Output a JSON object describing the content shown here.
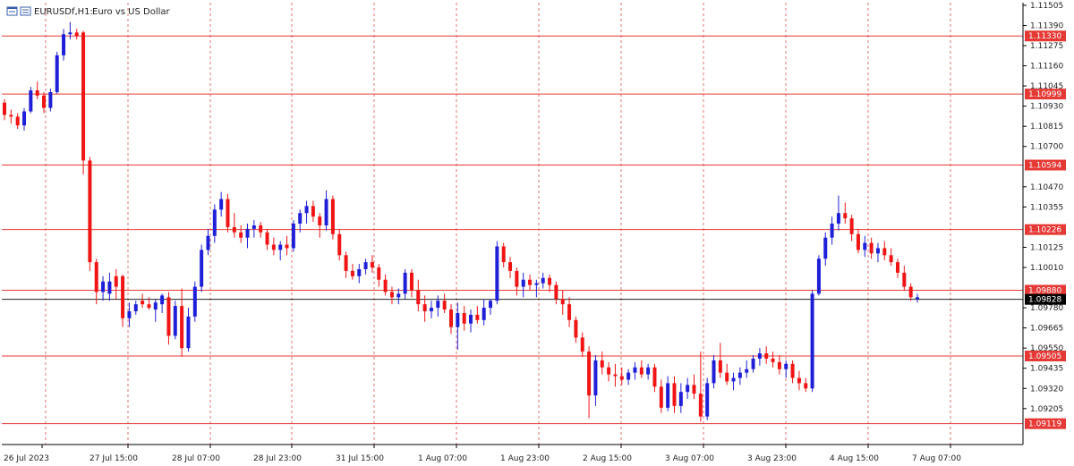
{
  "header": {
    "symbol_label": "EURUSDf,H1:",
    "description": "Euro vs US Dollar"
  },
  "colors": {
    "bull": "#1f1fd8",
    "bear": "#f01414",
    "grid": "#e05050",
    "hline": "#e53935",
    "price_line": "#000000",
    "axis": "#000000"
  },
  "icons": [
    "chart-window-icon",
    "properties-icon"
  ],
  "chart_data": {
    "type": "candlestick",
    "symbol": "EURUSDf",
    "timeframe": "H1",
    "ylim": [
      1.09,
      1.1152
    ],
    "yticks": [
      "1.11505",
      "1.11390",
      "1.11275",
      "1.11160",
      "1.11045",
      "1.10930",
      "1.10815",
      "1.10700",
      "1.10470",
      "1.10355",
      "1.10125",
      "1.10010",
      "1.09780",
      "1.09665",
      "1.09550",
      "1.09435",
      "1.09320",
      "1.09205"
    ],
    "xticks": [
      "26 Jul 2023",
      "27 Jul 15:00",
      "28 Jul 07:00",
      "28 Jul 23:00",
      "31 Jul 15:00",
      "1 Aug 07:00",
      "1 Aug 23:00",
      "2 Aug 15:00",
      "3 Aug 07:00",
      "3 Aug 23:00",
      "4 Aug 15:00",
      "7 Aug 07:00"
    ],
    "horizontal_lines": [
      {
        "label": "1.11330",
        "value": 1.1133
      },
      {
        "label": "1.10999",
        "value": 1.10999
      },
      {
        "label": "1.10594",
        "value": 1.10594
      },
      {
        "label": "1.10226",
        "value": 1.10226
      },
      {
        "label": "1.09880",
        "value": 1.0988
      },
      {
        "label": "1.09505",
        "value": 1.09505
      },
      {
        "label": "1.09119",
        "value": 1.09119
      }
    ],
    "current_price": {
      "label": "1.09828",
      "value": 1.09828
    },
    "candles_ohlc": [
      [
        1.1095,
        1.1097,
        1.1085,
        1.1088
      ],
      [
        1.1088,
        1.1091,
        1.1083,
        1.1087
      ],
      [
        1.1087,
        1.1089,
        1.108,
        1.1082
      ],
      [
        1.1082,
        1.1092,
        1.1079,
        1.109
      ],
      [
        1.109,
        1.1104,
        1.1089,
        1.1102
      ],
      [
        1.1102,
        1.1107,
        1.1097,
        1.1099
      ],
      [
        1.1099,
        1.1101,
        1.1089,
        1.1092
      ],
      [
        1.1092,
        1.1103,
        1.109,
        1.1101
      ],
      [
        1.1101,
        1.1124,
        1.11,
        1.1122
      ],
      [
        1.1122,
        1.1137,
        1.1119,
        1.1134
      ],
      [
        1.1134,
        1.1141,
        1.1131,
        1.1135
      ],
      [
        1.1135,
        1.1137,
        1.1131,
        1.1133
      ],
      [
        1.1135,
        1.1136,
        1.1054,
        1.1062
      ],
      [
        1.1062,
        1.1064,
        1.0999,
        1.1004
      ],
      [
        1.1004,
        1.1006,
        1.098,
        1.0987
      ],
      [
        1.0987,
        1.0996,
        1.0982,
        1.0993
      ],
      [
        1.0986,
        1.0998,
        1.0982,
        1.0993
      ],
      [
        1.0996,
        1.1,
        1.0983,
        1.099
      ],
      [
        1.0996,
        1.0997,
        1.0967,
        1.0972
      ],
      [
        1.0972,
        1.0981,
        1.0967,
        1.0976
      ],
      [
        1.0976,
        1.0982,
        1.0974,
        1.098
      ],
      [
        1.0982,
        1.0986,
        1.0978,
        1.098
      ],
      [
        1.098,
        1.0984,
        1.0977,
        1.0978
      ],
      [
        1.0977,
        1.0983,
        1.097,
        1.0981
      ],
      [
        1.098,
        1.0986,
        1.0975,
        1.0985
      ],
      [
        1.0984,
        1.0987,
        1.0957,
        1.0962
      ],
      [
        1.0962,
        1.0982,
        1.096,
        1.0979
      ],
      [
        1.0979,
        1.0989,
        1.095,
        1.0955
      ],
      [
        1.0955,
        1.0978,
        1.0953,
        1.0973
      ],
      [
        1.0973,
        1.0993,
        1.097,
        1.099
      ],
      [
        1.099,
        1.1014,
        1.0987,
        1.1011
      ],
      [
        1.1011,
        1.1023,
        1.1008,
        1.1019
      ],
      [
        1.1019,
        1.1037,
        1.1015,
        1.1034
      ],
      [
        1.1034,
        1.1044,
        1.103,
        1.104
      ],
      [
        1.104,
        1.1043,
        1.1021,
        1.1024
      ],
      [
        1.1024,
        1.1032,
        1.1018,
        1.1021
      ],
      [
        1.1021,
        1.1025,
        1.1015,
        1.1018
      ],
      [
        1.1018,
        1.1026,
        1.1012,
        1.1023
      ],
      [
        1.1023,
        1.1028,
        1.1018,
        1.1025
      ],
      [
        1.1025,
        1.1027,
        1.1018,
        1.1021
      ],
      [
        1.1021,
        1.1023,
        1.1011,
        1.1014
      ],
      [
        1.1014,
        1.1018,
        1.1008,
        1.1011
      ],
      [
        1.1011,
        1.1016,
        1.1005,
        1.1014
      ],
      [
        1.1014,
        1.1019,
        1.1008,
        1.1012
      ],
      [
        1.1012,
        1.1028,
        1.101,
        1.1026
      ],
      [
        1.1026,
        1.1034,
        1.1021,
        1.1032
      ],
      [
        1.1032,
        1.1039,
        1.1026,
        1.1036
      ],
      [
        1.1036,
        1.1039,
        1.1027,
        1.103
      ],
      [
        1.103,
        1.1032,
        1.1018,
        1.1025
      ],
      [
        1.1025,
        1.1045,
        1.1022,
        1.104
      ],
      [
        1.104,
        1.1042,
        1.1017,
        1.102
      ],
      [
        1.102,
        1.1023,
        1.1005,
        1.1008
      ],
      [
        1.1008,
        1.101,
        1.0995,
        1.0999
      ],
      [
        1.0999,
        1.1003,
        1.0994,
        1.0996
      ],
      [
        1.0996,
        1.1003,
        1.0992,
        1.1
      ],
      [
        1.1,
        1.1006,
        1.0997,
        1.1004
      ],
      [
        1.1004,
        1.1008,
        1.0998,
        1.1001
      ],
      [
        1.1001,
        1.1003,
        1.099,
        1.0994
      ],
      [
        1.0994,
        1.0997,
        1.0985,
        1.0987
      ],
      [
        1.0987,
        1.099,
        1.098,
        1.0984
      ],
      [
        1.0984,
        1.0989,
        1.098,
        1.0986
      ],
      [
        1.0986,
        1.1,
        1.0983,
        1.0998
      ],
      [
        1.0998,
        1.1,
        1.0984,
        1.0988
      ],
      [
        1.0988,
        1.0994,
        1.0976,
        1.098
      ],
      [
        1.098,
        1.0985,
        1.097,
        1.0976
      ],
      [
        1.0976,
        1.0982,
        1.0972,
        1.0978
      ],
      [
        1.0978,
        1.0985,
        1.0973,
        1.0982
      ],
      [
        1.0982,
        1.0986,
        1.0975,
        1.0977
      ],
      [
        1.0977,
        1.098,
        1.0963,
        1.0967
      ],
      [
        1.0967,
        1.0981,
        1.0954,
        1.0975
      ],
      [
        1.0975,
        1.0979,
        1.0965,
        1.0969
      ],
      [
        1.0969,
        1.0977,
        1.0964,
        1.0974
      ],
      [
        1.0974,
        1.0979,
        1.0969,
        1.0971
      ],
      [
        1.0971,
        1.0983,
        1.0968,
        1.0978
      ],
      [
        1.0978,
        1.0983,
        1.0974,
        1.0982
      ],
      [
        1.0982,
        1.1016,
        1.098,
        1.1013
      ],
      [
        1.1013,
        1.1015,
        1.1001,
        1.1004
      ],
      [
        1.1004,
        1.1007,
        1.0995,
        1.0999
      ],
      [
        1.0999,
        1.1001,
        1.0985,
        1.099
      ],
      [
        1.099,
        1.0998,
        1.0984,
        1.0994
      ],
      [
        1.0994,
        1.0997,
        1.0988,
        1.0991
      ],
      [
        1.0991,
        1.0994,
        1.0984,
        1.0992
      ],
      [
        1.0992,
        1.0998,
        1.0989,
        1.0995
      ],
      [
        1.0995,
        1.0997,
        1.0987,
        1.0991
      ],
      [
        1.0991,
        1.0993,
        1.098,
        1.0983
      ],
      [
        1.0983,
        1.0988,
        1.0974,
        1.098
      ],
      [
        1.098,
        1.0984,
        1.0967,
        1.0971
      ],
      [
        1.0971,
        1.0973,
        1.0958,
        1.0961
      ],
      [
        1.0961,
        1.0964,
        1.095,
        1.0953
      ],
      [
        1.0953,
        1.0956,
        1.0915,
        1.0928
      ],
      [
        1.0928,
        1.0951,
        1.0922,
        1.0948
      ],
      [
        1.0948,
        1.0953,
        1.094,
        1.0944
      ],
      [
        1.0944,
        1.0947,
        1.0936,
        1.094
      ],
      [
        1.094,
        1.0946,
        1.0933,
        1.0939
      ],
      [
        1.0939,
        1.0944,
        1.0934,
        1.0937
      ],
      [
        1.0937,
        1.0943,
        1.0934,
        1.0941
      ],
      [
        1.0941,
        1.0947,
        1.0937,
        1.0944
      ],
      [
        1.0944,
        1.0948,
        1.0938,
        1.094
      ],
      [
        1.094,
        1.0946,
        1.0937,
        1.0944
      ],
      [
        1.0944,
        1.0946,
        1.093,
        1.0933
      ],
      [
        1.0933,
        1.0937,
        1.0918,
        1.0921
      ],
      [
        1.0921,
        1.0939,
        1.0919,
        1.0935
      ],
      [
        1.0935,
        1.0939,
        1.0918,
        1.0922
      ],
      [
        1.0922,
        1.0935,
        1.0918,
        1.093
      ],
      [
        1.093,
        1.0938,
        1.0926,
        1.0934
      ],
      [
        1.0934,
        1.094,
        1.0926,
        1.0929
      ],
      [
        1.0929,
        1.0953,
        1.0913,
        1.0916
      ],
      [
        1.0916,
        1.0938,
        1.0914,
        1.0935
      ],
      [
        1.0935,
        1.0951,
        1.0932,
        1.0948
      ],
      [
        1.0948,
        1.0958,
        1.0938,
        1.0941
      ],
      [
        1.0941,
        1.0946,
        1.0934,
        1.0936
      ],
      [
        1.0936,
        1.0941,
        1.0931,
        1.0938
      ],
      [
        1.0938,
        1.0944,
        1.0934,
        1.0941
      ],
      [
        1.0941,
        1.0948,
        1.0938,
        1.0943
      ],
      [
        1.0943,
        1.0951,
        1.0941,
        1.0949
      ],
      [
        1.0949,
        1.0955,
        1.0945,
        1.0952
      ],
      [
        1.0952,
        1.0956,
        1.0946,
        1.0949
      ],
      [
        1.0949,
        1.0953,
        1.0944,
        1.0947
      ],
      [
        1.0947,
        1.0951,
        1.094,
        1.0943
      ],
      [
        1.0943,
        1.0948,
        1.0938,
        1.0946
      ],
      [
        1.0946,
        1.0948,
        1.0935,
        1.0938
      ],
      [
        1.0938,
        1.0942,
        1.0931,
        1.0935
      ],
      [
        1.0935,
        1.0938,
        1.093,
        1.0932
      ],
      [
        1.0932,
        1.0988,
        1.093,
        1.0986
      ],
      [
        1.0986,
        1.1008,
        1.0985,
        1.1006
      ],
      [
        1.1006,
        1.1021,
        1.1002,
        1.1018
      ],
      [
        1.1018,
        1.103,
        1.1014,
        1.1026
      ],
      [
        1.1026,
        1.1042,
        1.1022,
        1.1032
      ],
      [
        1.1032,
        1.1038,
        1.1026,
        1.1029
      ],
      [
        1.1029,
        1.1031,
        1.1016,
        1.102
      ],
      [
        1.102,
        1.1023,
        1.1009,
        1.1011
      ],
      [
        1.1011,
        1.1019,
        1.1007,
        1.1015
      ],
      [
        1.1015,
        1.1018,
        1.1006,
        1.1009
      ],
      [
        1.1009,
        1.1015,
        1.1004,
        1.1012
      ],
      [
        1.1012,
        1.1016,
        1.1005,
        1.1008
      ],
      [
        1.1008,
        1.1012,
        1.1002,
        1.1004
      ],
      [
        1.1004,
        1.1006,
        1.0995,
        1.0998
      ],
      [
        1.0998,
        1.1002,
        1.0988,
        1.099
      ],
      [
        1.099,
        1.0992,
        1.0982,
        1.0984
      ],
      [
        1.0983,
        1.0986,
        1.0981,
        1.0984
      ]
    ]
  }
}
